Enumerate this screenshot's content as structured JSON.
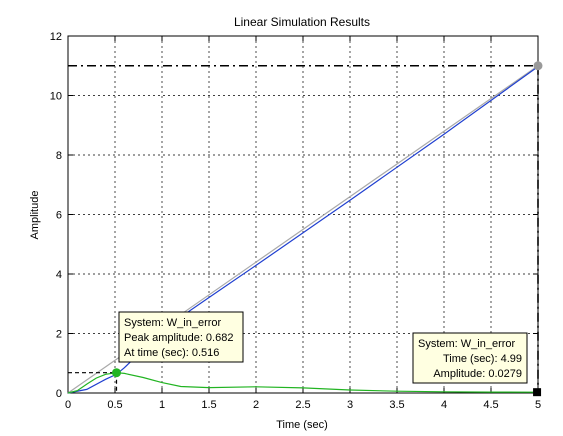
{
  "chart_data": {
    "type": "line",
    "title": "Linear Simulation Results",
    "xlabel": "Time (sec)",
    "ylabel": "Amplitude",
    "xlim": [
      0,
      5
    ],
    "ylim": [
      0,
      12
    ],
    "grid": true,
    "x_ticks": [
      "0",
      "0.5",
      "1",
      "1.5",
      "2",
      "2.5",
      "3",
      "3.5",
      "4",
      "4.5",
      "5"
    ],
    "y_ticks": [
      "0",
      "2",
      "4",
      "6",
      "8",
      "10",
      "12"
    ],
    "colors": {
      "input": "#a9a9a9",
      "output": "#1f3fd0",
      "error": "#22b422",
      "steady_state_line": "#000000"
    },
    "series": [
      {
        "x": [
          0,
          5
        ],
        "y": [
          0,
          11
        ]
      },
      {
        "x": [
          0,
          0.2,
          0.4,
          0.516,
          0.6,
          0.8,
          1,
          1.5,
          2,
          3,
          4,
          5
        ],
        "y": [
          0,
          0.12,
          0.46,
          0.63,
          0.85,
          1.46,
          2.12,
          3.21,
          4.29,
          6.48,
          8.7,
          10.97
        ]
      },
      {
        "x": [
          0,
          0.1,
          0.2,
          0.3,
          0.4,
          0.516,
          0.6,
          0.8,
          1.0,
          1.2,
          1.5,
          2.0,
          2.5,
          3.0,
          3.5,
          4.0,
          4.5,
          4.99
        ],
        "y": [
          0,
          0.08,
          0.3,
          0.5,
          0.63,
          0.682,
          0.66,
          0.52,
          0.35,
          0.22,
          0.18,
          0.21,
          0.17,
          0.1,
          0.06,
          0.04,
          0.03,
          0.0279
        ]
      }
    ],
    "steady_state_value": 11,
    "annotations": [
      {
        "marker_x": 0.516,
        "marker_y": 0.682,
        "marker_color": "#22b422",
        "lines": [
          "System: W_in_error",
          "Peak amplitude: 0.682",
          "At time (sec): 0.516"
        ]
      },
      {
        "marker_x": 4.99,
        "marker_y": 0.0279,
        "marker_color": "#000000",
        "lines": [
          "System: W_in_error",
          "Time (sec): 4.99",
          "Amplitude: 0.0279"
        ]
      },
      {
        "marker_x": 5,
        "marker_y": 11,
        "marker_color": "#999999",
        "lines": []
      }
    ]
  }
}
